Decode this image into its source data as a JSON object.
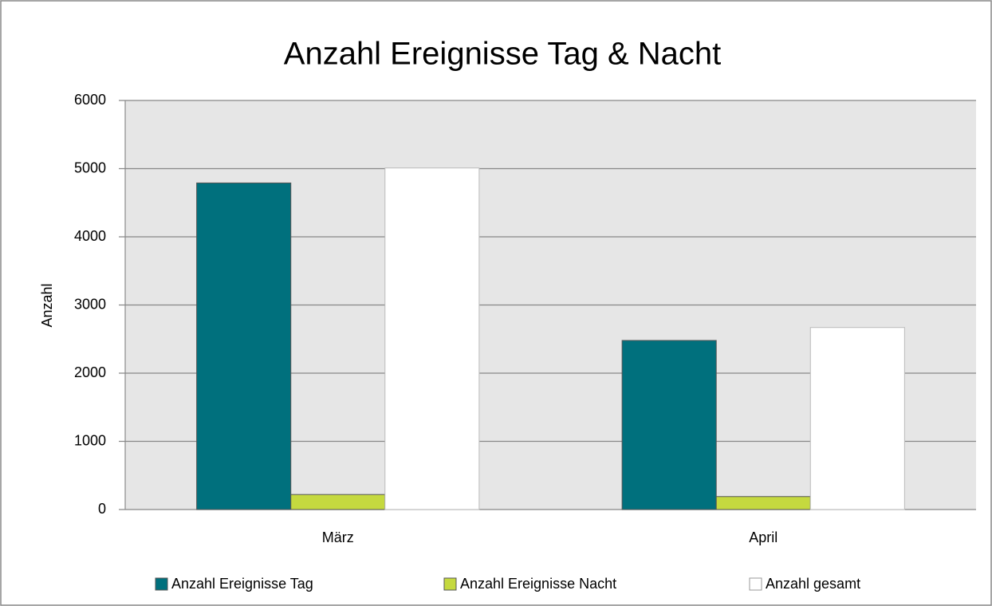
{
  "chart_data": {
    "type": "bar",
    "title": "Anzahl Ereignisse Tag & Nacht",
    "y_label": "Anzahl",
    "categories": [
      "März",
      "April"
    ],
    "series": [
      {
        "name": "Anzahl Ereignisse Tag",
        "color": "#00707d",
        "values": [
          4790,
          2480
        ]
      },
      {
        "name": "Anzahl Ereignisse Nacht",
        "color": "#c5d93f",
        "values": [
          220,
          190
        ]
      },
      {
        "name": "Anzahl gesamt",
        "color": "#ffffff",
        "values": [
          5010,
          2670
        ]
      }
    ],
    "ylim": [
      0,
      6000
    ],
    "yticks": [
      0,
      1000,
      2000,
      3000,
      4000,
      5000,
      6000
    ],
    "grid": true,
    "legend": "bottom"
  }
}
